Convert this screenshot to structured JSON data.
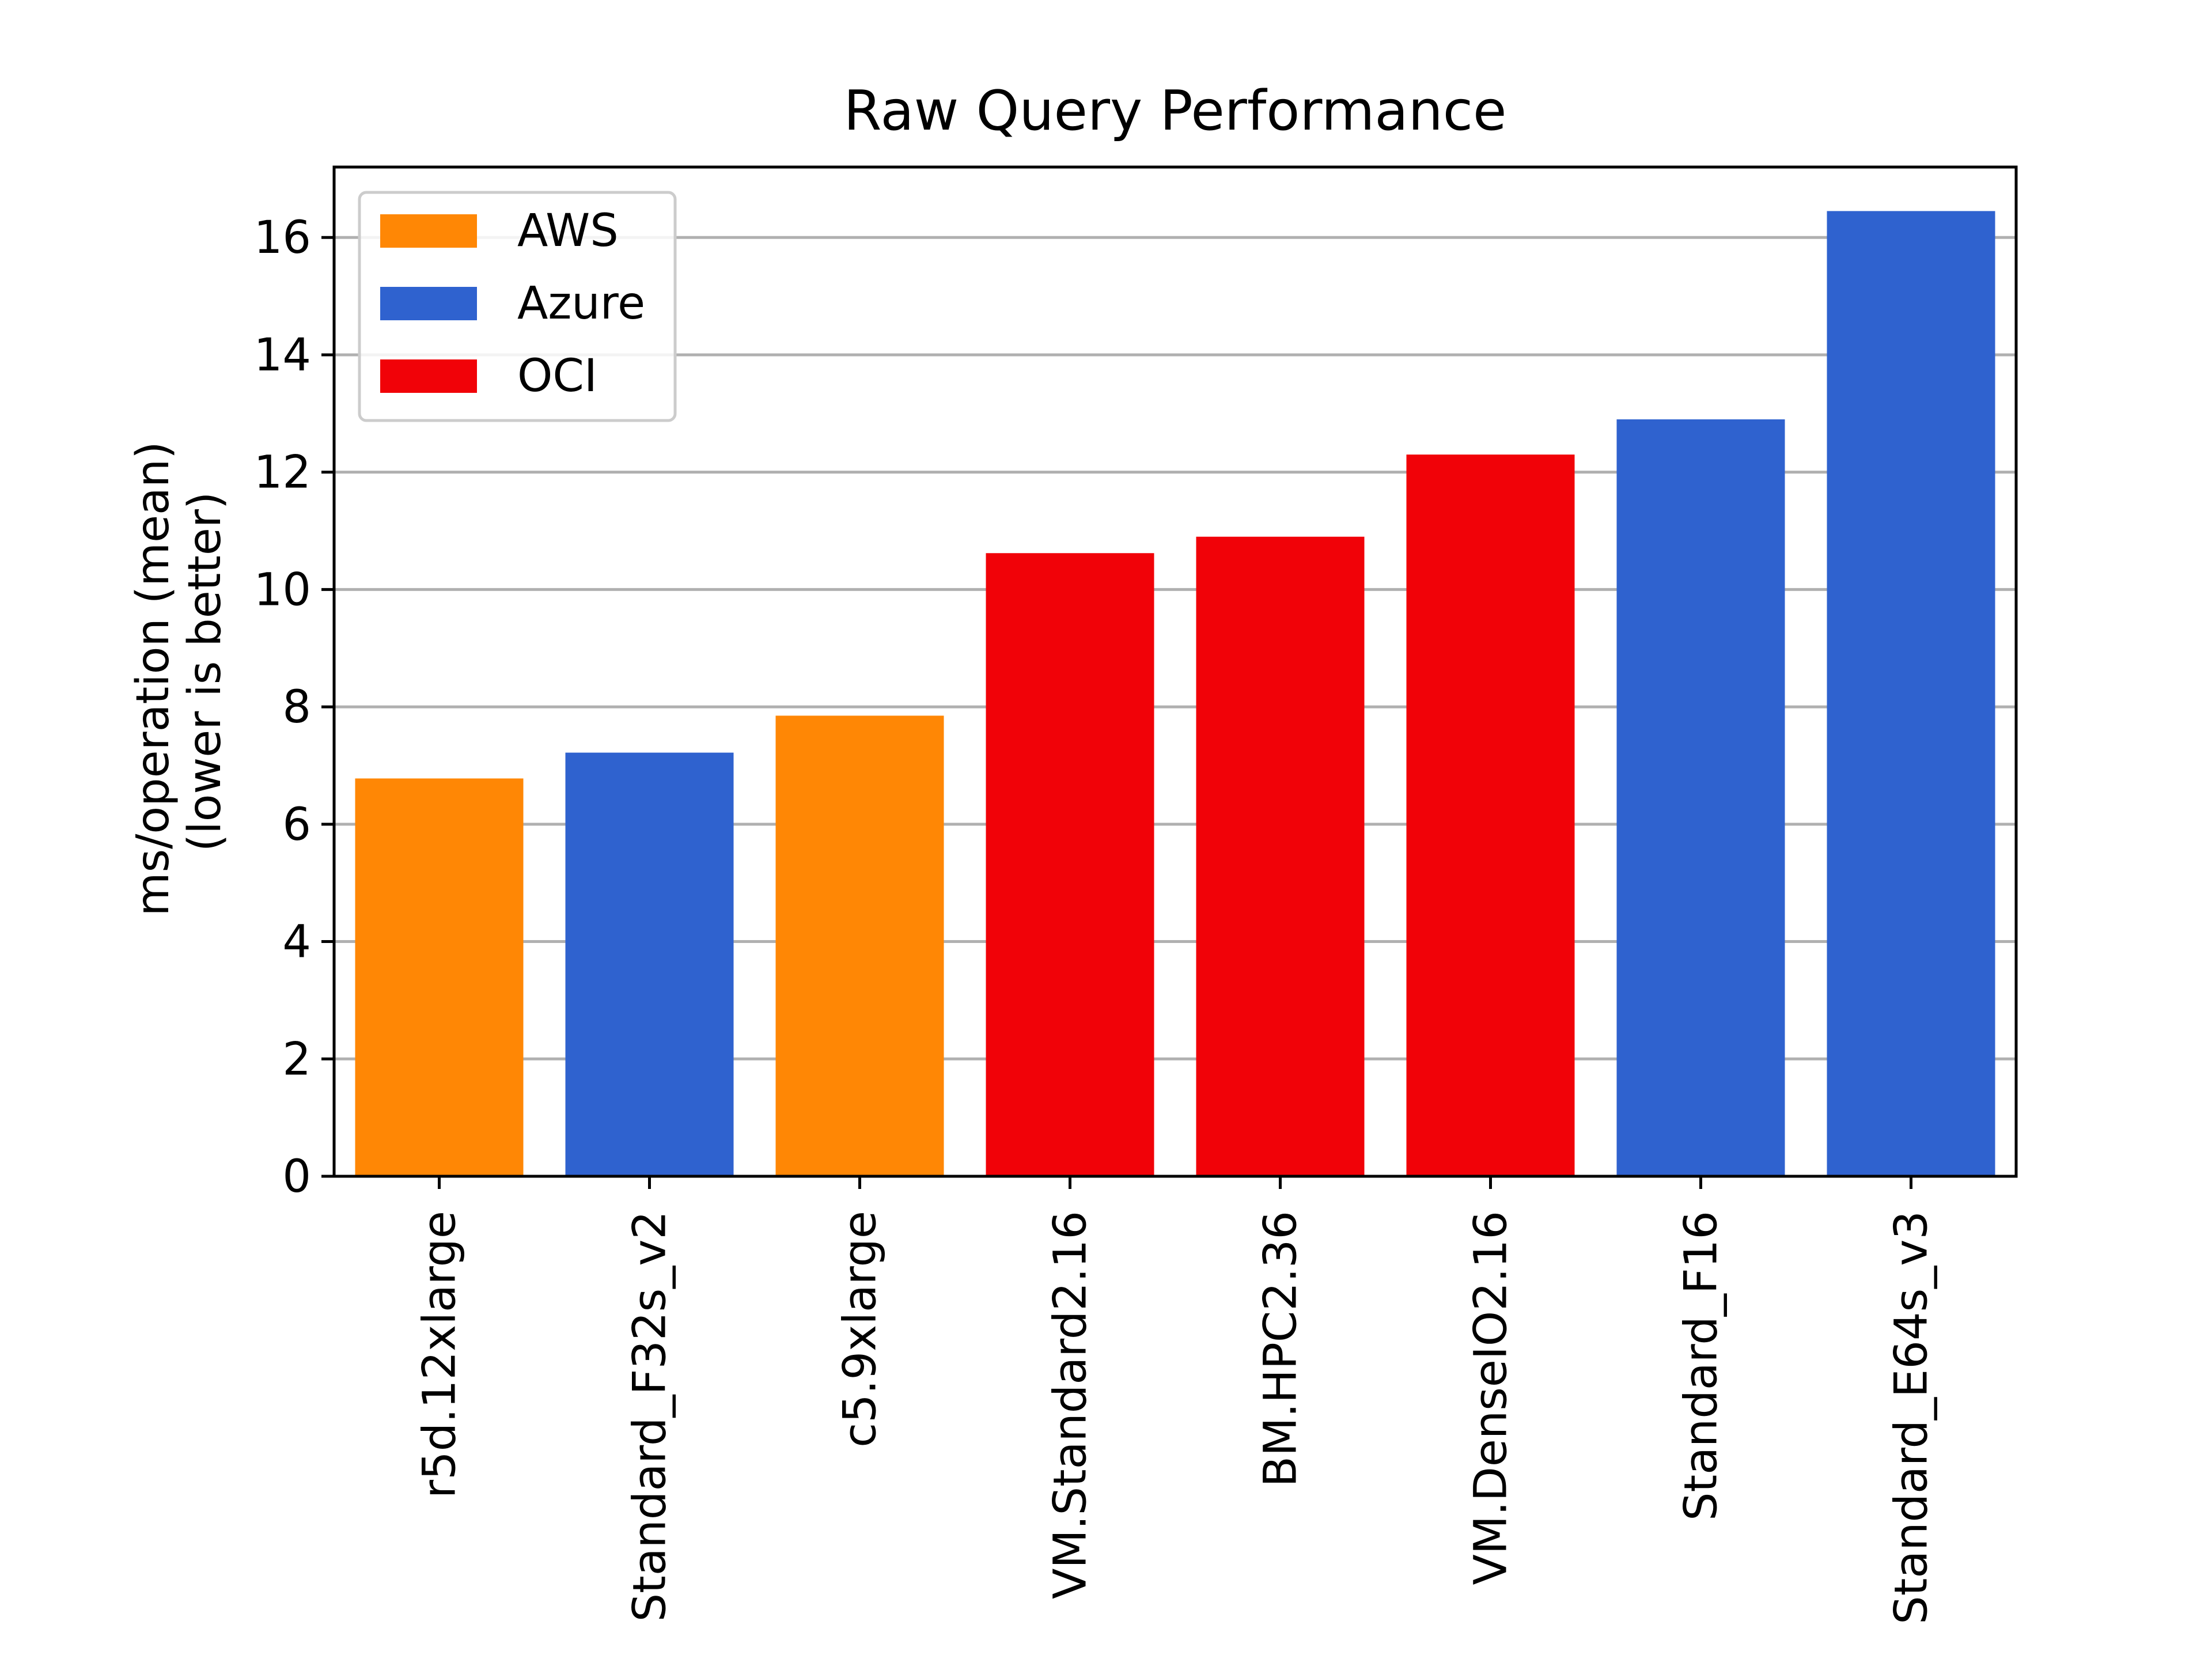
{
  "chart_data": {
    "type": "bar",
    "title": "Raw Query Performance",
    "xlabel": "",
    "ylabel": "ms/operation (mean)",
    "ylabel_sub": "(lower is better)",
    "ylim": [
      0,
      17.2
    ],
    "yticks": [
      0,
      2,
      4,
      6,
      8,
      10,
      12,
      14,
      16
    ],
    "grid": "y",
    "legend_position": "top-left",
    "colors": {
      "AWS": "#ff8705",
      "Azure": "#2f62cf",
      "OCI": "#f10208"
    },
    "legend": [
      {
        "name": "AWS",
        "color": "#ff8705"
      },
      {
        "name": "Azure",
        "color": "#2f62cf"
      },
      {
        "name": "OCI",
        "color": "#f10208"
      }
    ],
    "categories": [
      "r5d.12xlarge",
      "Standard_F32s_v2",
      "c5.9xlarge",
      "VM.Standard2.16",
      "BM.HPC2.36",
      "VM.DenseIO2.16",
      "Standard_F16",
      "Standard_E64s_v3"
    ],
    "values": [
      6.78,
      7.22,
      7.85,
      10.62,
      10.9,
      12.3,
      12.9,
      16.45
    ],
    "groups": [
      "AWS",
      "Azure",
      "AWS",
      "OCI",
      "OCI",
      "OCI",
      "Azure",
      "Azure"
    ]
  }
}
